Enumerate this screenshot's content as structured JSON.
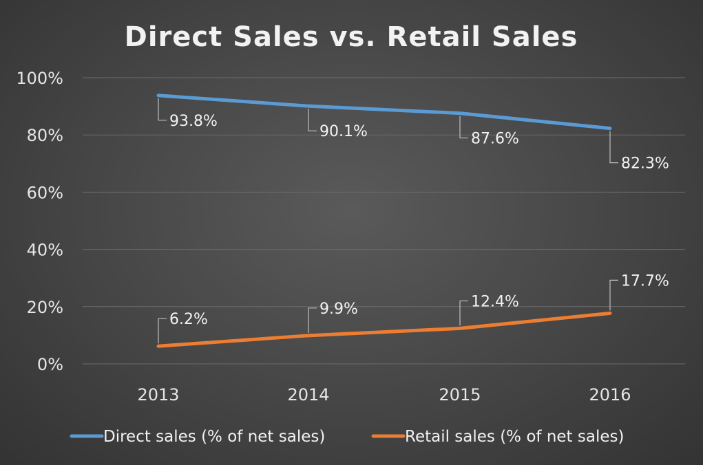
{
  "chart_data": {
    "type": "line",
    "title": "Direct Sales vs. Retail Sales",
    "xlabel": "",
    "ylabel": "",
    "categories": [
      "2013",
      "2014",
      "2015",
      "2016"
    ],
    "ylim": [
      0,
      100
    ],
    "yticks": [
      "0%",
      "20%",
      "40%",
      "60%",
      "80%",
      "100%"
    ],
    "grid": true,
    "legend": "bottom",
    "series": [
      {
        "name": "Direct sales (% of net sales)",
        "color": "#5b9bd5",
        "values": [
          93.8,
          90.1,
          87.6,
          82.3
        ],
        "labels": [
          "93.8%",
          "90.1%",
          "87.6%",
          "82.3%"
        ]
      },
      {
        "name": "Retail sales (% of net sales)",
        "color": "#ed7d31",
        "values": [
          6.2,
          9.9,
          12.4,
          17.7
        ],
        "labels": [
          "6.2%",
          "9.9%",
          "12.4%",
          "17.7%"
        ]
      }
    ]
  }
}
